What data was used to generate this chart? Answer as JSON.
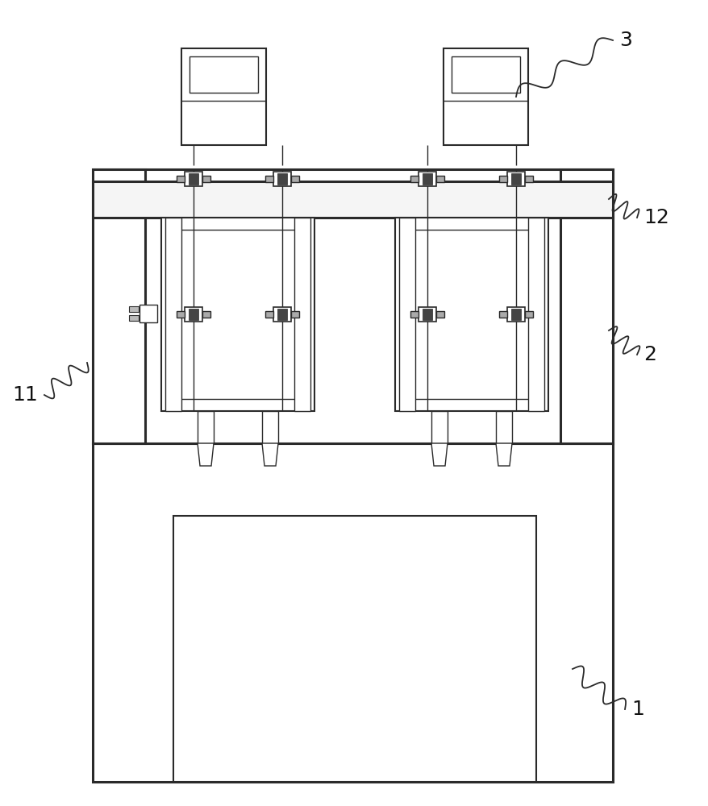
{
  "bg_color": "#ffffff",
  "line_color": "#2a2a2a",
  "fig_width": 8.79,
  "fig_height": 10.0,
  "lw_heavy": 2.2,
  "lw_med": 1.5,
  "lw_light": 1.0
}
